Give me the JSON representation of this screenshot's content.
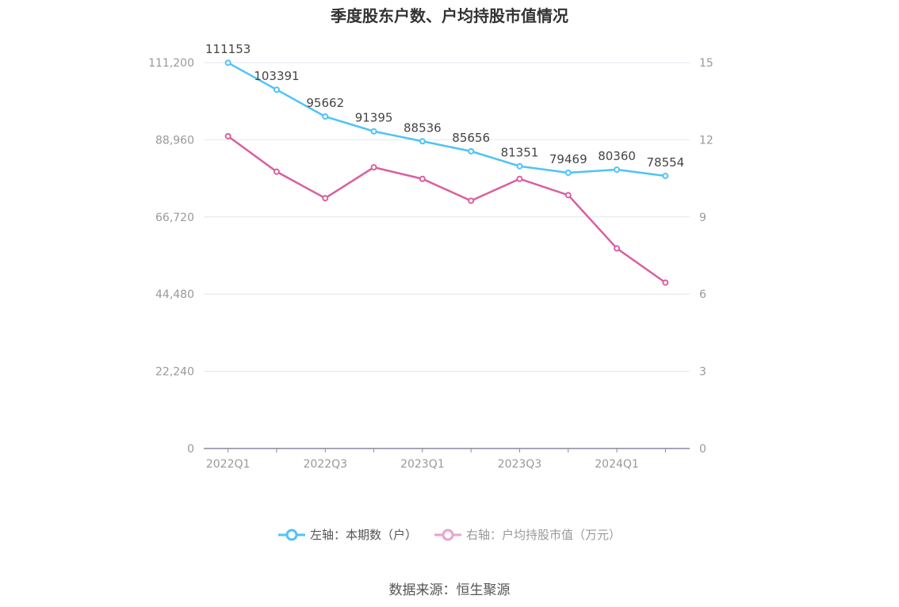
{
  "chart_data": {
    "type": "line",
    "title": "季度股东户数、户均持股市值情况",
    "categories": [
      "2022Q1",
      "2022Q2",
      "2022Q3",
      "2022Q4",
      "2023Q1",
      "2023Q2",
      "2023Q3",
      "2023Q4",
      "2024Q1",
      "2024Q2"
    ],
    "x_tick_labels": [
      "2022Q1",
      "2022Q3",
      "2023Q1",
      "2023Q3",
      "2024Q1"
    ],
    "left_axis": {
      "ylim": [
        0,
        111200
      ],
      "ticks": [
        "0",
        "22,240",
        "44,480",
        "66,720",
        "88,960",
        "111,200"
      ]
    },
    "right_axis": {
      "ylim": [
        0,
        15
      ],
      "ticks": [
        "0",
        "3",
        "6",
        "9",
        "12",
        "15"
      ]
    },
    "grid": true,
    "legend_position": "bottom",
    "series": [
      {
        "name": "左轴：本期数（户）",
        "axis": "left",
        "color": "#4fc3f7",
        "values": [
          111153,
          103391,
          95662,
          91395,
          88536,
          85656,
          81351,
          79469,
          80360,
          78554
        ],
        "data_labels": [
          "111153",
          "103391",
          "95662",
          "91395",
          "88536",
          "85656",
          "81351",
          "79469",
          "80360",
          "78554"
        ]
      },
      {
        "name": "右轴：户均持股市值（万元）",
        "axis": "right",
        "color": "#d9609f",
        "legend_color": "#eaa3cc",
        "values": [
          12.14,
          10.76,
          9.73,
          10.93,
          10.48,
          9.63,
          10.48,
          9.85,
          7.78,
          6.45
        ]
      }
    ]
  },
  "source": "数据来源：恒生聚源"
}
